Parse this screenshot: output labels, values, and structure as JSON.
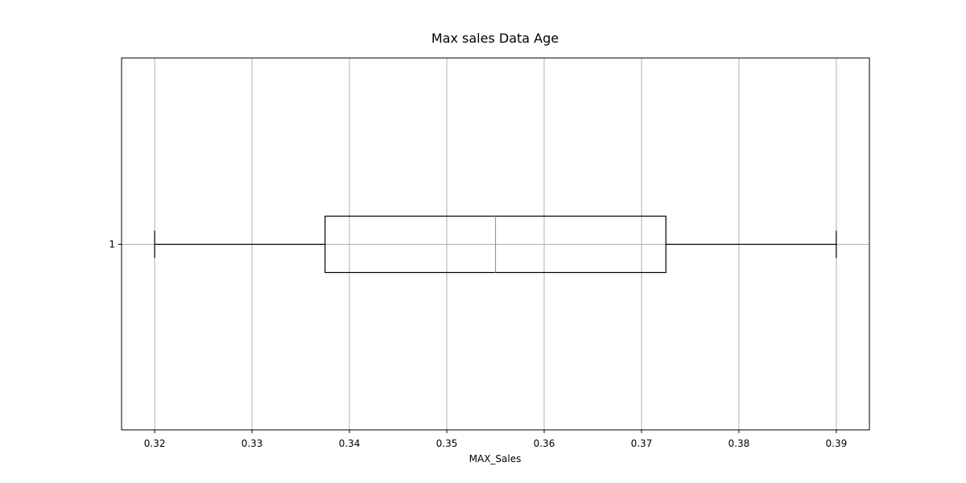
{
  "chart_data": {
    "type": "boxplot",
    "orientation": "horizontal",
    "title": "Max sales Data Age",
    "xlabel": "MAX_Sales",
    "ylabel": "",
    "xlim": [
      0.3166,
      0.3934
    ],
    "x_ticks": [
      0.32,
      0.33,
      0.34,
      0.35,
      0.36,
      0.37,
      0.38,
      0.39
    ],
    "x_tick_labels": [
      "0.32",
      "0.33",
      "0.34",
      "0.35",
      "0.36",
      "0.37",
      "0.38",
      "0.39"
    ],
    "y_tick_labels": [
      "1"
    ],
    "grid": true,
    "boxes": [
      {
        "label": "1",
        "whisker_low": 0.32,
        "q1": 0.3375,
        "median": 0.355,
        "q3": 0.3725,
        "whisker_high": 0.39
      }
    ],
    "colors": {
      "box": "#000000",
      "median": "#ff7f0e",
      "grid": "#b0b0b0"
    }
  }
}
